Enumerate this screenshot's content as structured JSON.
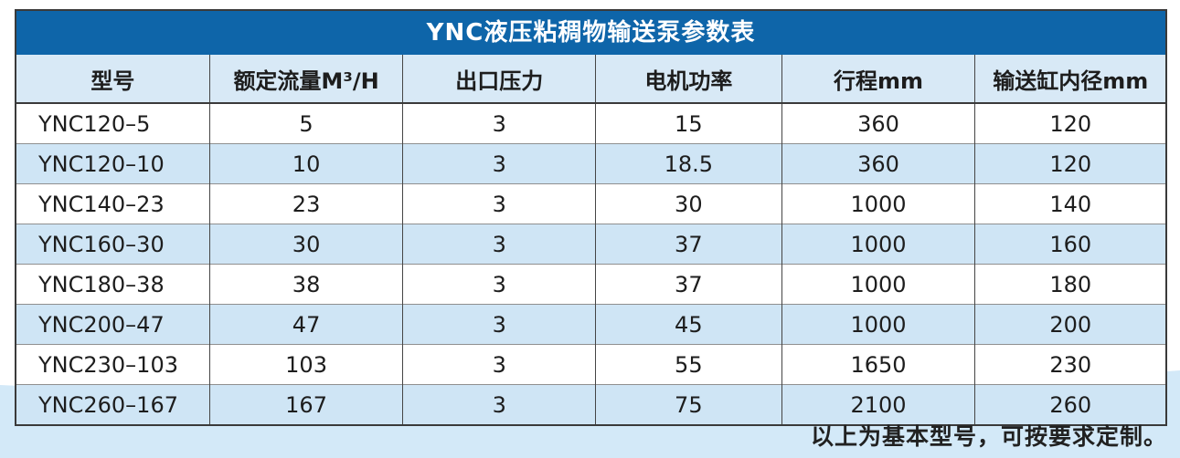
{
  "colors": {
    "title_bar_bg": "#0e65a9",
    "title_text": "#ffffff",
    "header_row_bg": "#d8e9f6",
    "row_even_bg": "#cfe5f5",
    "row_odd_bg": "#ffffff",
    "table_border": "#3a3a3a",
    "body_text": "#1d1d1d",
    "bottom_band_bg": "#d3e9f8"
  },
  "table": {
    "title": "YNC液压粘稠物输送泵参数表",
    "columns": [
      "型号",
      "额定流量M³/H",
      "出口压力",
      "电机功率",
      "行程mm",
      "输送缸内径mm"
    ],
    "rows": [
      [
        "YNC120–5",
        "5",
        "3",
        "15",
        "360",
        "120"
      ],
      [
        "YNC120–10",
        "10",
        "3",
        "18.5",
        "360",
        "120"
      ],
      [
        "YNC140–23",
        "23",
        "3",
        "30",
        "1000",
        "140"
      ],
      [
        "YNC160–30",
        "30",
        "3",
        "37",
        "1000",
        "160"
      ],
      [
        "YNC180–38",
        "38",
        "3",
        "37",
        "1000",
        "180"
      ],
      [
        "YNC200–47",
        "47",
        "3",
        "45",
        "1000",
        "200"
      ],
      [
        "YNC230–103",
        "103",
        "3",
        "55",
        "1650",
        "230"
      ],
      [
        "YNC260–167",
        "167",
        "3",
        "75",
        "2100",
        "260"
      ]
    ]
  },
  "footer": {
    "note": "以上为基本型号，可按要求定制。"
  }
}
